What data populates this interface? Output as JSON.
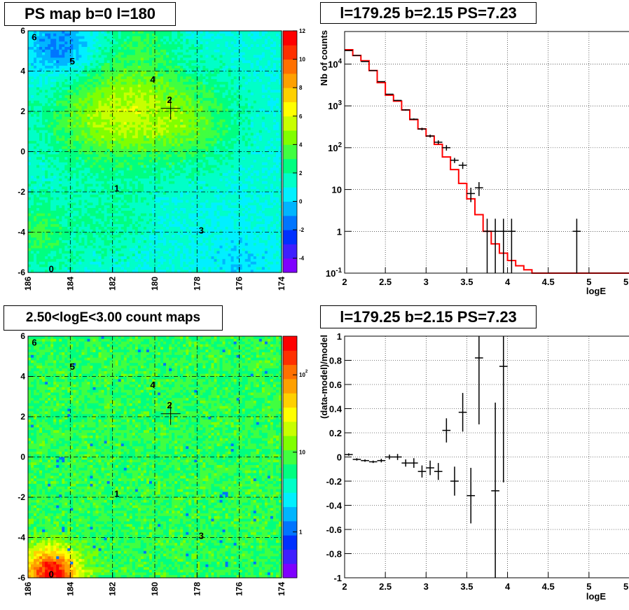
{
  "panels": {
    "tl": {
      "title": "PS map b=0 l=180"
    },
    "tr": {
      "title": "l=179.25 b=2.15 PS=7.23"
    },
    "bl": {
      "title": "2.50<logE<3.00 count maps"
    },
    "br": {
      "title": "l=179.25 b=2.15 PS=7.23"
    }
  },
  "chart_data": [
    {
      "type": "heatmap",
      "title": "PS map b=0 l=180",
      "x_ticks": [
        "186",
        "184",
        "182",
        "180",
        "178",
        "176",
        "174"
      ],
      "y_ticks": [
        "6",
        "4",
        "2",
        "0",
        "-2",
        "-4",
        "-6"
      ],
      "xlim": [
        186,
        174
      ],
      "ylim": [
        -6,
        6
      ],
      "colorbar_ticks": [
        "12",
        "10",
        "8",
        "6",
        "4",
        "2",
        "0",
        "-2",
        "-4"
      ],
      "colorbar_range": [
        -5,
        12
      ],
      "grid": true,
      "sources": [
        {
          "label": "0",
          "l": 184.9,
          "b": -5.8
        },
        {
          "label": "1",
          "l": 181.8,
          "b": -1.8
        },
        {
          "label": "2",
          "l": 179.3,
          "b": 2.6
        },
        {
          "label": "3",
          "l": 177.8,
          "b": -3.9
        },
        {
          "label": "4",
          "l": 180.1,
          "b": 3.6
        },
        {
          "label": "5",
          "l": 183.9,
          "b": 4.5
        },
        {
          "label": "6",
          "l": 185.7,
          "b": 5.7
        }
      ],
      "marker": {
        "l": 179.25,
        "b": 2.15
      }
    },
    {
      "type": "line",
      "title": "l=179.25 b=2.15 PS=7.23",
      "xlabel": "logE",
      "ylabel": "Nb of counts",
      "xlim": [
        2,
        5.5
      ],
      "ylim": [
        0.1,
        60000
      ],
      "yscale": "log",
      "x_ticks": [
        "2",
        "2.5",
        "3",
        "3.5",
        "4",
        "4.5",
        "5",
        "5.5"
      ],
      "y_ticks": [
        "10^{-1}",
        "1",
        "10",
        "10^{2}",
        "10^{3}",
        "10^{4}"
      ],
      "grid": true,
      "model_color": "#ff0000",
      "model": {
        "bin_edges": [
          2,
          2.1,
          2.2,
          2.3,
          2.4,
          2.5,
          2.6,
          2.7,
          2.8,
          2.9,
          3,
          3.1,
          3.2,
          3.3,
          3.4,
          3.5,
          3.6,
          3.7,
          3.8,
          3.9,
          4,
          4.1,
          4.2,
          4.3,
          4.4,
          4.5,
          4.6,
          4.7,
          4.8,
          4.9,
          5,
          5.1,
          5.2,
          5.3,
          5.4,
          5.5
        ],
        "values": [
          22000,
          16000,
          12000,
          7000,
          3600,
          1800,
          1300,
          800,
          470,
          280,
          190,
          120,
          60,
          30,
          14,
          6,
          2.5,
          1,
          0.5,
          0.3,
          0.2,
          0.15,
          0.12,
          0.1,
          0.1,
          0.1,
          0.1,
          0.1,
          0.1,
          0.1,
          0.1,
          0.1,
          0.1,
          0.1,
          0.1
        ]
      },
      "data": {
        "x": [
          2.05,
          2.15,
          2.25,
          2.35,
          2.45,
          2.55,
          2.65,
          2.75,
          2.85,
          2.95,
          3.05,
          3.15,
          3.25,
          3.35,
          3.45,
          3.55,
          3.65,
          3.75,
          3.85,
          3.95,
          4.05,
          4.85
        ],
        "y": [
          21000,
          16000,
          11500,
          7000,
          3800,
          1900,
          1350,
          800,
          480,
          280,
          190,
          135,
          100,
          50,
          38,
          8,
          11,
          1,
          1,
          1,
          1,
          1
        ],
        "ylow": [
          20500,
          15700,
          11300,
          6900,
          3750,
          1880,
          1320,
          770,
          460,
          260,
          175,
          120,
          85,
          43,
          31,
          5,
          7,
          0.1,
          0.1,
          0.1,
          0.1,
          0.1
        ],
        "yhigh": [
          21500,
          16300,
          11700,
          7100,
          3850,
          1920,
          1380,
          830,
          500,
          300,
          205,
          150,
          115,
          57,
          45,
          11,
          15,
          2,
          2,
          2,
          2,
          2
        ]
      }
    },
    {
      "type": "heatmap",
      "title": "2.50<logE<3.00 count maps",
      "x_ticks": [
        "186",
        "184",
        "182",
        "180",
        "178",
        "176",
        "174"
      ],
      "y_ticks": [
        "6",
        "4",
        "2",
        "0",
        "-2",
        "-4",
        "-6"
      ],
      "xlim": [
        186,
        174
      ],
      "ylim": [
        -6,
        6
      ],
      "colorbar_ticks": [
        "10^{2}",
        "10",
        "1"
      ],
      "colorbar_scale": "log",
      "grid": true,
      "sources": [
        {
          "label": "0",
          "l": 184.9,
          "b": -5.8
        },
        {
          "label": "1",
          "l": 181.8,
          "b": -1.8
        },
        {
          "label": "2",
          "l": 179.3,
          "b": 2.6
        },
        {
          "label": "3",
          "l": 177.8,
          "b": -3.9
        },
        {
          "label": "4",
          "l": 180.1,
          "b": 3.6
        },
        {
          "label": "5",
          "l": 183.9,
          "b": 4.5
        },
        {
          "label": "6",
          "l": 185.7,
          "b": 5.7
        }
      ],
      "marker": {
        "l": 179.25,
        "b": 2.15
      }
    },
    {
      "type": "scatter",
      "title": "l=179.25 b=2.15 PS=7.23",
      "xlabel": "logE",
      "ylabel": "(data-model)/model",
      "xlim": [
        2,
        5.5
      ],
      "ylim": [
        -1,
        1
      ],
      "x_ticks": [
        "2",
        "2.5",
        "3",
        "3.5",
        "4",
        "4.5",
        "5",
        "5.5"
      ],
      "y_ticks": [
        "-1",
        "-0.8",
        "-0.6",
        "-0.4",
        "-0.2",
        "0",
        "0.2",
        "0.4",
        "0.6",
        "0.8",
        "1"
      ],
      "grid": true,
      "data": {
        "x": [
          2.05,
          2.15,
          2.25,
          2.35,
          2.45,
          2.55,
          2.65,
          2.75,
          2.85,
          2.95,
          3.05,
          3.15,
          3.25,
          3.35,
          3.45,
          3.55,
          3.65,
          3.85,
          3.95
        ],
        "y": [
          0.02,
          -0.02,
          -0.03,
          -0.04,
          -0.03,
          0.0,
          0.0,
          -0.05,
          -0.05,
          -0.12,
          -0.09,
          -0.12,
          0.22,
          -0.2,
          0.37,
          -0.32,
          0.82,
          -0.28,
          0.75
        ],
        "err": [
          0.01,
          0.01,
          0.01,
          0.01,
          0.015,
          0.02,
          0.025,
          0.03,
          0.04,
          0.05,
          0.06,
          0.07,
          0.1,
          0.12,
          0.16,
          0.23,
          0.55,
          0.73,
          0.96
        ]
      }
    }
  ]
}
